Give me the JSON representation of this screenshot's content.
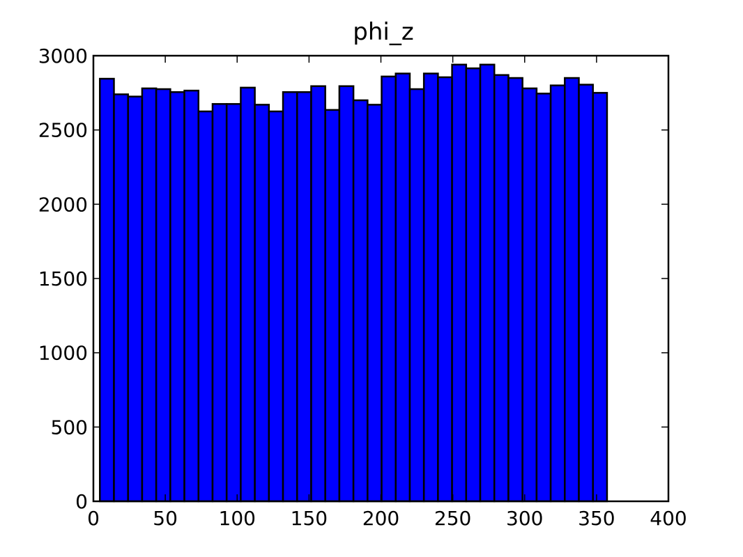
{
  "chart_data": {
    "type": "bar",
    "title": "phi_z",
    "xlabel": "",
    "ylabel": "",
    "xlim": [
      0,
      400
    ],
    "ylim": [
      0,
      3000
    ],
    "xticks": [
      0,
      50,
      100,
      150,
      200,
      250,
      300,
      350,
      400
    ],
    "yticks": [
      0,
      500,
      1000,
      1500,
      2000,
      2500,
      3000
    ],
    "grid": false,
    "bin_width": 9.8,
    "bin_start": 4.5,
    "values": [
      2845,
      2740,
      2725,
      2780,
      2775,
      2755,
      2765,
      2625,
      2675,
      2675,
      2785,
      2670,
      2625,
      2755,
      2755,
      2795,
      2635,
      2795,
      2700,
      2670,
      2860,
      2880,
      2775,
      2880,
      2855,
      2940,
      2915,
      2940,
      2870,
      2850,
      2780,
      2745,
      2800,
      2850,
      2805,
      2750
    ],
    "colors": {
      "bar_fill": "#0000ff",
      "bar_edge": "#000000",
      "axis": "#000000",
      "background": "#ffffff"
    }
  }
}
